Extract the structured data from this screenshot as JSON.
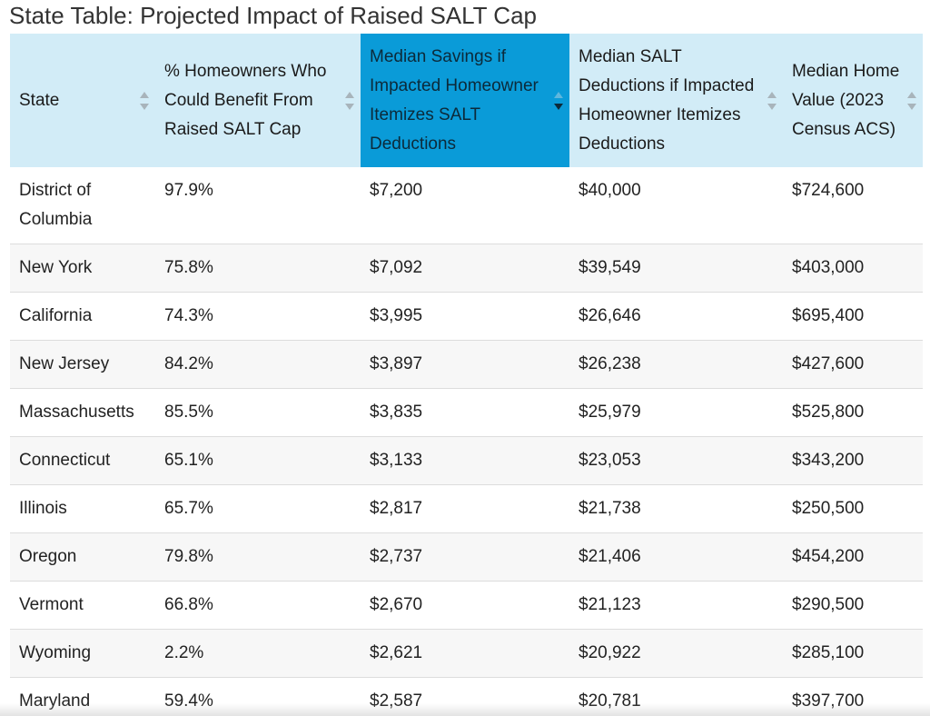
{
  "title": "State Table: Projected Impact of Raised SALT Cap",
  "table": {
    "columns": [
      {
        "label": "State",
        "sort_icon": "sort-updown-icon"
      },
      {
        "label": "% Homeowners Who Could Benefit From Raised SALT Cap",
        "sort_icon": "sort-updown-icon"
      },
      {
        "label": "Median Savings if Impacted Homeowner Itemizes SALT Deductions",
        "sort_icon": "sort-down-icon",
        "sorted": "descending"
      },
      {
        "label": "Median SALT Deductions if Impacted Homeowner Itemizes Deductions",
        "sort_icon": "sort-updown-icon"
      },
      {
        "label": "Median Home Value (2023 Census ACS)",
        "sort_icon": "sort-updown-icon"
      }
    ],
    "rows": [
      [
        "District of Columbia",
        "97.9%",
        "$7,200",
        "$40,000",
        "$724,600"
      ],
      [
        "New York",
        "75.8%",
        "$7,092",
        "$39,549",
        "$403,000"
      ],
      [
        "California",
        "74.3%",
        "$3,995",
        "$26,646",
        "$695,400"
      ],
      [
        "New Jersey",
        "84.2%",
        "$3,897",
        "$26,238",
        "$427,600"
      ],
      [
        "Massachusetts",
        "85.5%",
        "$3,835",
        "$25,979",
        "$525,800"
      ],
      [
        "Connecticut",
        "65.1%",
        "$3,133",
        "$23,053",
        "$343,200"
      ],
      [
        "Illinois",
        "65.7%",
        "$2,817",
        "$21,738",
        "$250,500"
      ],
      [
        "Oregon",
        "79.8%",
        "$2,737",
        "$21,406",
        "$454,200"
      ],
      [
        "Vermont",
        "66.8%",
        "$2,670",
        "$21,123",
        "$290,500"
      ],
      [
        "Wyoming",
        "2.2%",
        "$2,621",
        "$20,922",
        "$285,100"
      ],
      [
        "Maryland",
        "59.4%",
        "$2,587",
        "$20,781",
        "$397,700"
      ]
    ]
  },
  "colors": {
    "header_bg": "#d2ecf7",
    "sorted_header_bg": "#0a9bd8",
    "row_alt_bg": "#f7f7f7"
  }
}
